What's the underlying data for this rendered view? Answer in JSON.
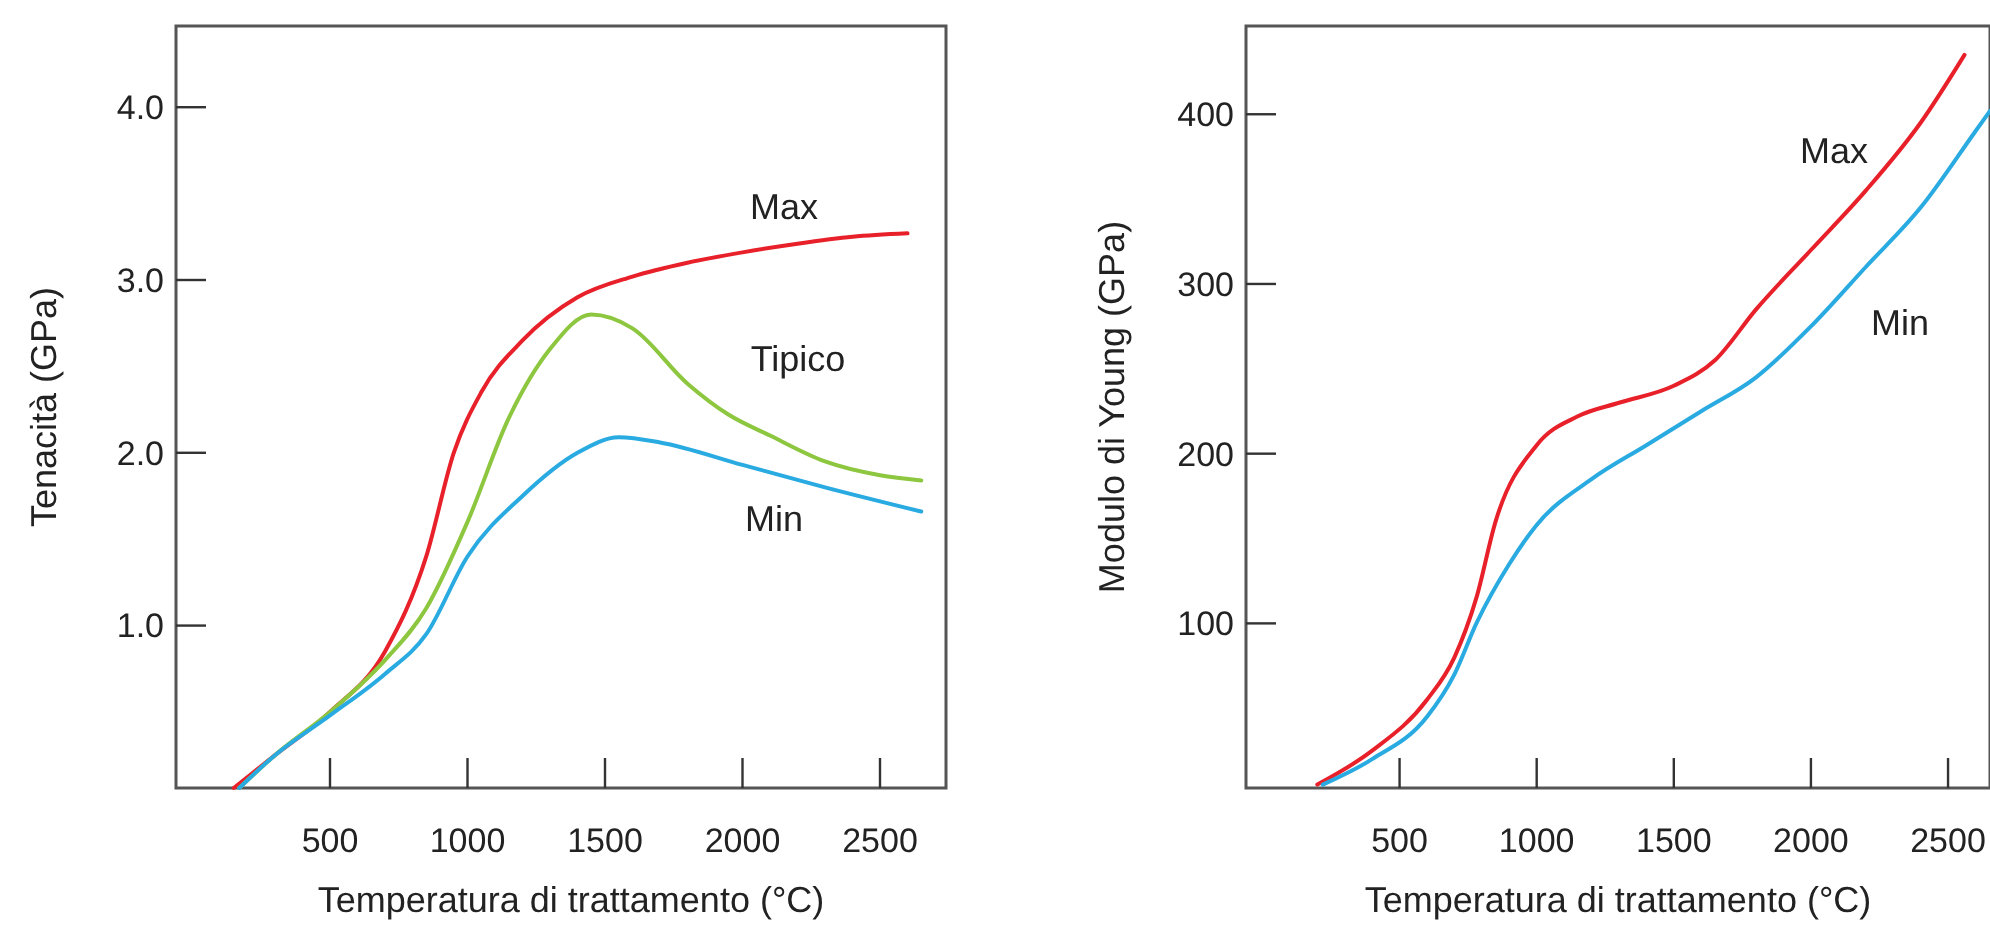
{
  "chart_data": [
    {
      "type": "line",
      "xlabel": "Temperatura di trattamento (°C)",
      "ylabel": "Tenacità (GPa)",
      "xlim": [
        -60,
        2740
      ],
      "ylim": [
        0.06,
        4.47
      ],
      "xticks": [
        500,
        1000,
        1500,
        2000,
        2500
      ],
      "yticks": [
        {
          "value": 1,
          "label": "1.0"
        },
        {
          "value": 2,
          "label": "2.0"
        },
        {
          "value": 3,
          "label": "3.0"
        },
        {
          "value": 4,
          "label": "4.0"
        }
      ],
      "grid": false,
      "legend": false,
      "marker": "none",
      "line_style": "solid",
      "series": [
        {
          "name": "Max",
          "color": "#e8202a",
          "x": [
            150,
            300,
            500,
            700,
            850,
            950,
            1050,
            1200,
            1400,
            1600,
            1800,
            2000,
            2200,
            2400,
            2600
          ],
          "values": [
            0.06,
            0.25,
            0.5,
            0.85,
            1.4,
            2.0,
            2.35,
            2.65,
            2.9,
            3.02,
            3.1,
            3.16,
            3.21,
            3.25,
            3.27
          ]
        },
        {
          "name": "Tipico",
          "color": "#8dc63f",
          "x": [
            170,
            300,
            500,
            700,
            850,
            1000,
            1150,
            1300,
            1450,
            1600,
            1800,
            1950,
            2100,
            2300,
            2500,
            2650
          ],
          "values": [
            0.06,
            0.25,
            0.5,
            0.8,
            1.1,
            1.6,
            2.2,
            2.6,
            2.8,
            2.72,
            2.4,
            2.22,
            2.1,
            1.95,
            1.87,
            1.84
          ]
        },
        {
          "name": "Min",
          "color": "#29abe2",
          "x": [
            170,
            300,
            500,
            700,
            850,
            1000,
            1200,
            1400,
            1550,
            1700,
            2000,
            2300,
            2650
          ],
          "values": [
            0.06,
            0.25,
            0.48,
            0.72,
            0.95,
            1.4,
            1.75,
            2.0,
            2.09,
            2.06,
            1.93,
            1.8,
            1.66
          ]
        }
      ]
    },
    {
      "type": "line",
      "xlabel": "Temperatura di trattamento (°C)",
      "ylabel": "Modulo di Young (GPa)",
      "xlim": [
        -60,
        2653
      ],
      "ylim": [
        3,
        452
      ],
      "xticks": [
        500,
        1000,
        1500,
        2000,
        2500
      ],
      "yticks": [
        100,
        200,
        300,
        400
      ],
      "grid": false,
      "legend": false,
      "marker": "none",
      "line_style": "solid",
      "series": [
        {
          "name": "Max",
          "color": "#e8202a",
          "x": [
            200,
            400,
            600,
            700,
            780,
            850,
            1000,
            1150,
            1300,
            1500,
            1650,
            1800,
            2000,
            2200,
            2400,
            2560
          ],
          "values": [
            5,
            25,
            55,
            80,
            115,
            160,
            205,
            222,
            230,
            240,
            255,
            285,
            320,
            355,
            395,
            435
          ]
        },
        {
          "name": "Min",
          "color": "#29abe2",
          "x": [
            220,
            400,
            600,
            700,
            780,
            900,
            1000,
            1200,
            1400,
            1600,
            1800,
            2000,
            2200,
            2400,
            2600,
            2653
          ],
          "values": [
            5,
            20,
            45,
            70,
            100,
            135,
            158,
            185,
            205,
            225,
            245,
            275,
            310,
            345,
            390,
            402
          ]
        }
      ]
    }
  ]
}
